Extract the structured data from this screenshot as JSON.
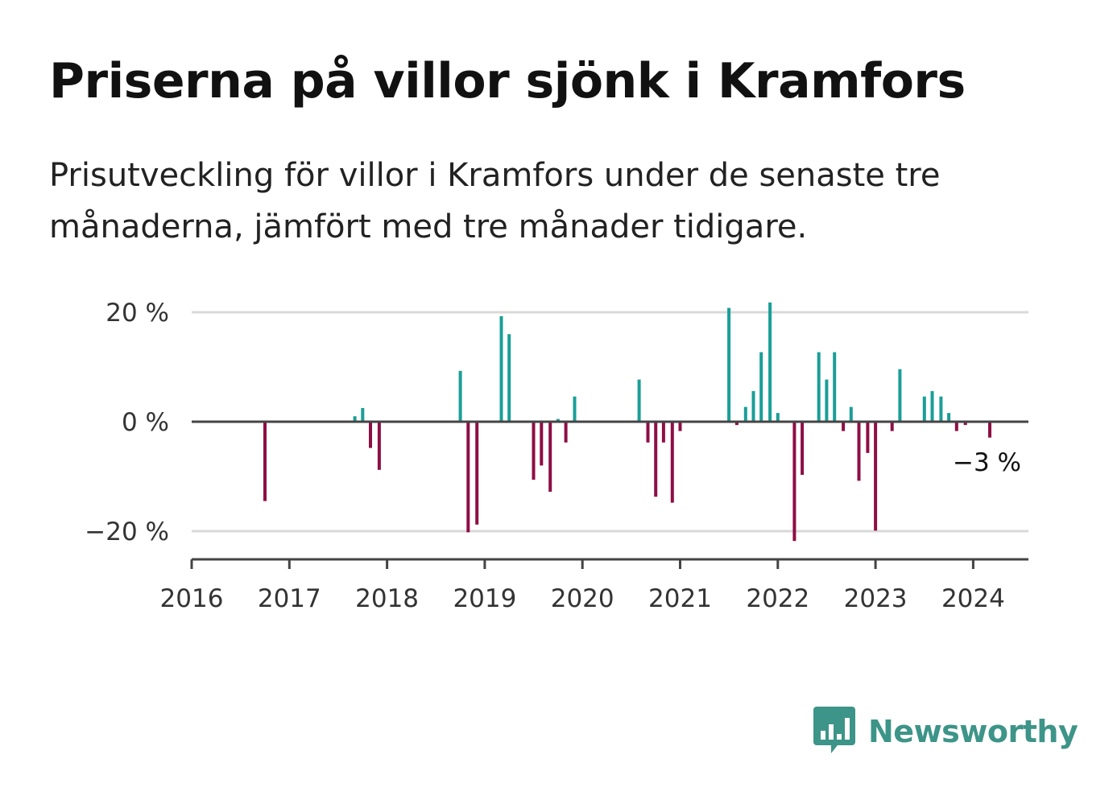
{
  "title": "Priserna på villor sjönk i Kramfors",
  "subtitle": "Prisutveckling för villor i Kramfors under de senaste tre månaderna, jämfört med tre månader tidigare.",
  "brand": "Newsworthy",
  "colors": {
    "positive": "#1a9e97",
    "negative": "#8e0e45",
    "grid": "#d9d9d9",
    "axis": "#444444",
    "brand": "#3d9488"
  },
  "chart_data": {
    "type": "bar",
    "ylim": [
      -25,
      25
    ],
    "xlim": [
      2016,
      2024.6
    ],
    "y_ticks": [
      {
        "value": 20,
        "label": "20 %"
      },
      {
        "value": 0,
        "label": "0 %"
      },
      {
        "value": -20,
        "label": "−20 %"
      }
    ],
    "x_ticks": [
      "2016",
      "2017",
      "2018",
      "2019",
      "2020",
      "2021",
      "2022",
      "2023",
      "2024"
    ],
    "annotation": "−3 %",
    "grid": true,
    "x": [
      2016.75,
      2017.67,
      2017.75,
      2017.83,
      2017.92,
      2018.75,
      2018.83,
      2018.92,
      2019.17,
      2019.25,
      2019.5,
      2019.58,
      2019.67,
      2019.75,
      2019.83,
      2019.92,
      2020.58,
      2020.67,
      2020.75,
      2020.83,
      2020.92,
      2021.0,
      2021.5,
      2021.58,
      2021.67,
      2021.75,
      2021.83,
      2021.92,
      2022.0,
      2022.17,
      2022.25,
      2022.42,
      2022.5,
      2022.58,
      2022.67,
      2022.75,
      2022.83,
      2022.92,
      2023.0,
      2023.17,
      2023.25,
      2023.5,
      2023.58,
      2023.67,
      2023.75,
      2023.83,
      2023.92,
      2024.17
    ],
    "values": [
      -14.5,
      1,
      2.5,
      -4.8,
      -8.8,
      9.3,
      -20.2,
      -18.8,
      19.3,
      16,
      -10.6,
      -8,
      -12.8,
      0.5,
      -3.8,
      4.6,
      7.7,
      -3.8,
      -13.7,
      -3.8,
      -14.8,
      -1.7,
      20.8,
      -0.6,
      2.7,
      5.6,
      12.7,
      21.8,
      1.6,
      -21.8,
      -9.7,
      12.7,
      7.7,
      12.7,
      -1.7,
      2.7,
      -10.8,
      -5.7,
      -19.9,
      -1.7,
      9.6,
      4.6,
      5.6,
      4.6,
      1.6,
      -1.7,
      -0.6,
      -2.9
    ]
  }
}
